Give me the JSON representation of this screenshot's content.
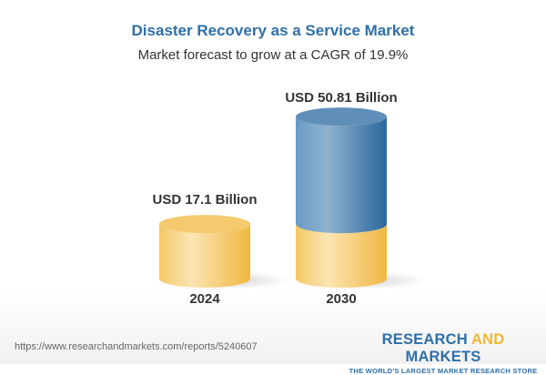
{
  "chart_data": {
    "type": "bar",
    "style": "3d-cylinder",
    "title": "Disaster Recovery as a Service Market",
    "subtitle": "Market forecast to grow at a CAGR of 19.9%",
    "categories": [
      "2024",
      "2030"
    ],
    "values": [
      17.1,
      50.81
    ],
    "data_labels": [
      "USD 17.1 Billion",
      "USD 50.81 Billion"
    ],
    "unit": "USD Billion",
    "colors": {
      "base": "#f2c462",
      "growth": "#3f79ab",
      "title": "#2f6fa8"
    },
    "grid": false,
    "legend": "none"
  },
  "footer": {
    "url": "https://www.researchandmarkets.com/reports/5240607",
    "logo_line1_a": "RESEARCH ",
    "logo_line1_b": "AND",
    "logo_line1_c": " MARKETS",
    "logo_line2": "THE WORLD'S LARGEST MARKET RESEARCH STORE"
  }
}
